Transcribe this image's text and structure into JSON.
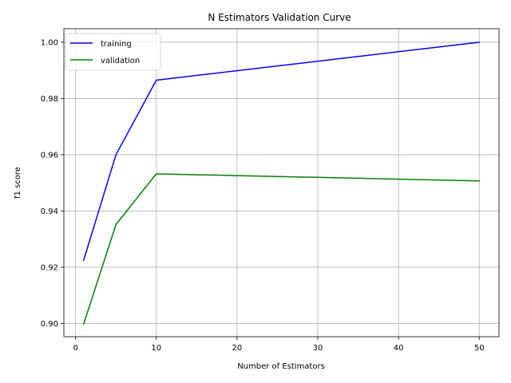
{
  "chart_data": {
    "type": "line",
    "title": "N Estimators Validation Curve",
    "xlabel": "Number of Estimators",
    "ylabel": "f1 score",
    "x": [
      1,
      5,
      10,
      50
    ],
    "series": [
      {
        "name": "training",
        "color": "#0000ff",
        "values": [
          0.9225,
          0.96,
          0.9865,
          1.0
        ]
      },
      {
        "name": "validation",
        "color": "#008000",
        "values": [
          0.8998,
          0.9352,
          0.9532,
          0.9507
        ]
      }
    ],
    "xlim": [
      -1.45,
      52.45
    ],
    "ylim": [
      0.8953,
      1.0048
    ],
    "xticks": [
      0,
      10,
      20,
      30,
      40,
      50
    ],
    "xtick_labels": [
      "0",
      "10",
      "20",
      "30",
      "40",
      "50"
    ],
    "yticks": [
      0.9,
      0.92,
      0.94,
      0.96,
      0.98,
      1.0
    ],
    "ytick_labels": [
      "0.90",
      "0.92",
      "0.94",
      "0.96",
      "0.98",
      "1.00"
    ],
    "grid": true,
    "legend_position": "upper-left"
  }
}
